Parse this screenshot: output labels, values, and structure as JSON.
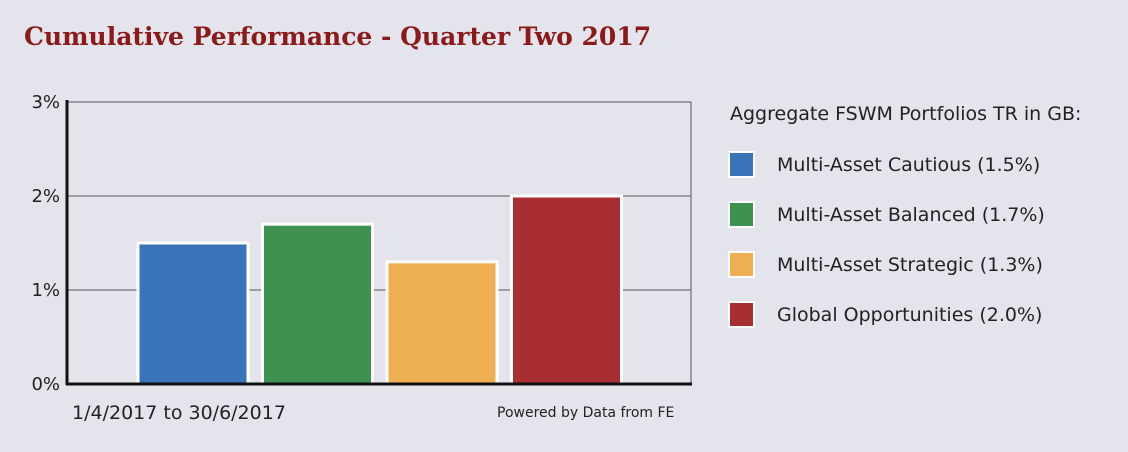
{
  "title": "Cumulative Performance - Quarter Two 2017",
  "chart_data": {
    "type": "bar",
    "categories": [
      "Multi-Asset Cautious",
      "Multi-Asset Balanced",
      "Multi-Asset Strategic",
      "Global Opportunities"
    ],
    "values": [
      1.5,
      1.7,
      1.3,
      2.0
    ],
    "colors": [
      "#3a74b8",
      "#3f9150",
      "#eeb052",
      "#a92e32"
    ],
    "ylim": [
      0,
      3
    ],
    "yticks": [
      0,
      1,
      2,
      3
    ],
    "ytick_labels": [
      "0%",
      "1%",
      "2%",
      "3%"
    ],
    "grid": true,
    "legend_placement": "right"
  },
  "date_range": "1/4/2017 to 30/6/2017",
  "source": "Powered by Data from FE",
  "legend": {
    "title": "Aggregate FSWM Portfolios TR in GB:",
    "items": [
      {
        "label": "Multi-Asset Cautious (1.5%)",
        "color": "#3a74b8"
      },
      {
        "label": "Multi-Asset Balanced (1.7%)",
        "color": "#3f9150"
      },
      {
        "label": "Multi-Asset Strategic (1.3%)",
        "color": "#eeb052"
      },
      {
        "label": "Global Opportunities (2.0%)",
        "color": "#a92e32"
      }
    ]
  }
}
